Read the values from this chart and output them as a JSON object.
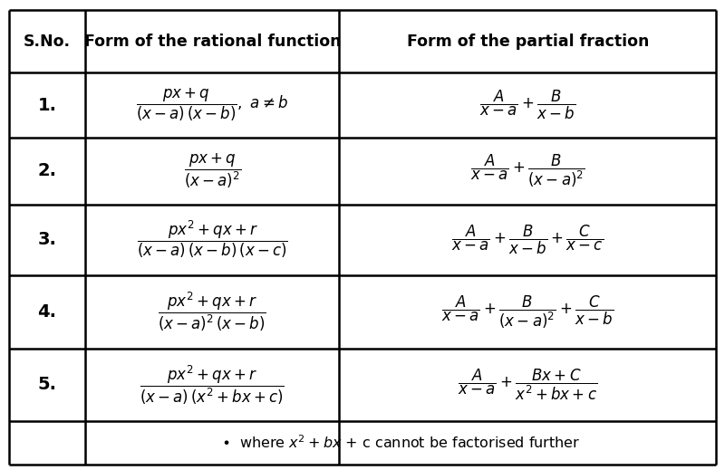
{
  "fig_width": 8.0,
  "fig_height": 5.19,
  "dpi": 100,
  "bg_color": "#ffffff",
  "line_color": "#000000",
  "text_color": "#000000",
  "c0": 0.012,
  "c1": 0.118,
  "c2": 0.468,
  "c3": 0.988,
  "rows": [
    0.978,
    0.845,
    0.707,
    0.565,
    0.415,
    0.258,
    0.105,
    0.012
  ],
  "header_texts": [
    "S.No.",
    "Form of the rational function",
    "Form of the partial fraction"
  ],
  "sno_labels": [
    "1.",
    "2.",
    "3.",
    "4.",
    "5."
  ],
  "rf": [
    "$\\dfrac{px+q}{(x-a)\\,(x-b)},\\ a\\neq b$",
    "$\\dfrac{px+q}{(x-a)^2}$",
    "$\\dfrac{px^2+qx+r}{(x-a)\\,(x-b)\\,(x-c)}$",
    "$\\dfrac{px^2+qx+r}{(x-a)^2\\,(x-b)}$",
    "$\\dfrac{px^2+qx+r}{(x-a)\\,(x^2+bx+c)}$"
  ],
  "pf": [
    "$\\dfrac{A}{x-a}+\\dfrac{B}{x-b}$",
    "$\\dfrac{A}{x-a}+\\dfrac{B}{(x-a)^2}$",
    "$\\dfrac{A}{x-a}+\\dfrac{B}{x-b}+\\dfrac{C}{x-c}$",
    "$\\dfrac{A}{x-a}+\\dfrac{B}{(x-a)^2}+\\dfrac{C}{x-b}$",
    "$\\dfrac{A}{x-a}+\\dfrac{Bx+C}{x^2+bx+c}$"
  ],
  "note": "$\\bullet$  where $x^2 + bx$ + c cannot be factorised further",
  "font_size_header": 12.5,
  "font_size_sno": 14,
  "font_size_formula": 12,
  "font_size_note": 11.5,
  "lw": 1.8
}
